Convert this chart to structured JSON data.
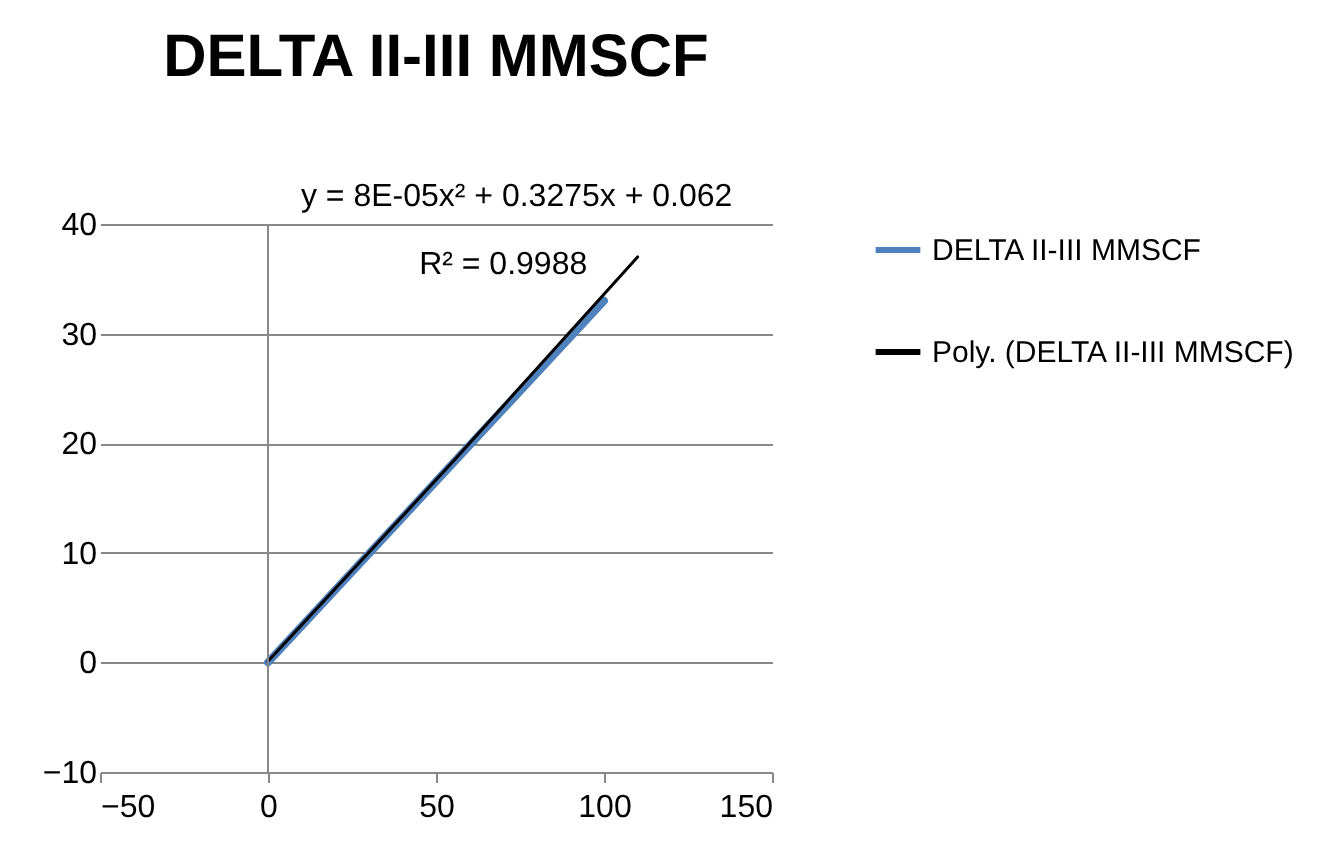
{
  "chart_data": {
    "type": "line",
    "title": "DELTA II-III MMSCF",
    "series": [
      {
        "name": "DELTA II-III MMSCF",
        "color": "#4f81bd",
        "x": [
          0,
          50,
          100
        ],
        "values": [
          0,
          16.5,
          33
        ]
      },
      {
        "name": "Poly. (DELTA II-III MMSCF)",
        "type": "line",
        "color": "#000000",
        "x": [
          0,
          55,
          110
        ],
        "values": [
          0.1,
          18.3,
          37
        ]
      }
    ],
    "xlim": [
      -50,
      150
    ],
    "xticks": [
      -50,
      0,
      50,
      100,
      150
    ],
    "ylim": [
      -10,
      40
    ],
    "yticks": [
      -10,
      0,
      10,
      20,
      30,
      40
    ],
    "grid": "y",
    "legend": "right",
    "ref_lines": [
      {
        "axis": "x",
        "value": 0
      }
    ],
    "annotations": [
      "y = 8E-05x² + 0.3275x + 0.062",
      "R² = 0.9988"
    ]
  }
}
